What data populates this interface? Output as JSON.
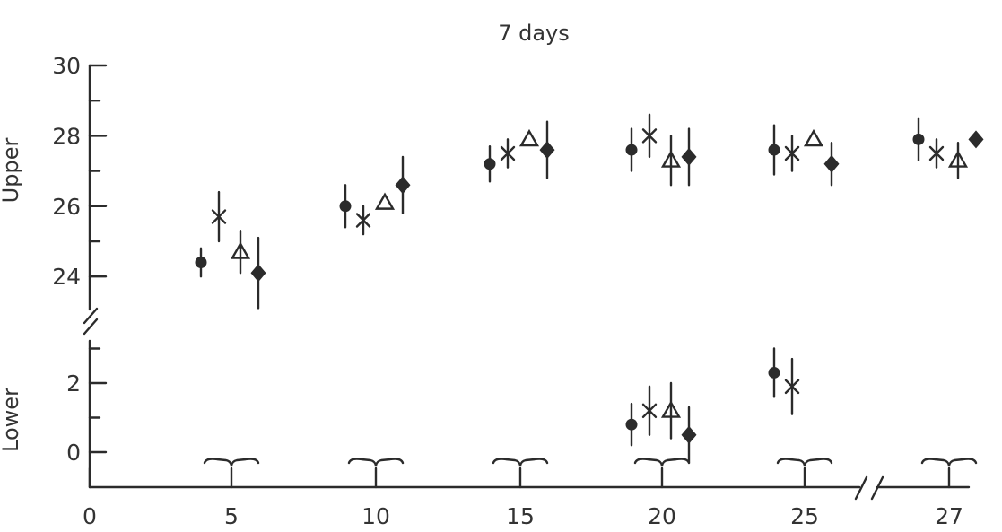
{
  "chart_data": {
    "type": "scatter",
    "title": "7 days",
    "panels": [
      {
        "ylabel": "Upper",
        "yticks": [
          24,
          26,
          28,
          30
        ],
        "ylim": [
          23,
          30
        ]
      },
      {
        "ylabel": "Lower",
        "yticks": [
          0,
          2
        ],
        "ylim": [
          0,
          3
        ]
      }
    ],
    "x_ticks": [
      "0",
      "5",
      "10",
      "15",
      "20",
      "25",
      "27"
    ],
    "markers": {
      "s1": "filled-circle",
      "s2": "asterisk",
      "s3": "open-triangle",
      "s4": "filled-diamond"
    },
    "groups": [
      {
        "x": "5",
        "panel": "Upper",
        "s1": 24.4,
        "s1_err": 0.4,
        "s2": 25.7,
        "s2_err": 0.7,
        "s3": 24.7,
        "s3_err": 0.6,
        "s4": 24.1,
        "s4_err": 1.0
      },
      {
        "x": "10",
        "panel": "Upper",
        "s1": 26.0,
        "s1_err": 0.6,
        "s2": 25.6,
        "s2_err": 0.4,
        "s3": 26.1,
        "s3_err": 0.0,
        "s4": 26.6,
        "s4_err": 0.8
      },
      {
        "x": "15",
        "panel": "Upper",
        "s1": 27.2,
        "s1_err": 0.5,
        "s2": 27.5,
        "s2_err": 0.4,
        "s3": 27.9,
        "s3_err": 0.0,
        "s4": 27.6,
        "s4_err": 0.8
      },
      {
        "x": "20",
        "panel": "Upper",
        "s1": 27.6,
        "s1_err": 0.6,
        "s2": 28.0,
        "s2_err": 0.6,
        "s3": 27.3,
        "s3_err": 0.7,
        "s4": 27.4,
        "s4_err": 0.8
      },
      {
        "x": "25",
        "panel": "Upper",
        "s1": 27.6,
        "s1_err": 0.7,
        "s2": 27.5,
        "s2_err": 0.5,
        "s3": 27.9,
        "s3_err": 0.0,
        "s4": 27.2,
        "s4_err": 0.6
      },
      {
        "x": "27",
        "panel": "Upper",
        "s1": 27.9,
        "s1_err": 0.6,
        "s2": 27.5,
        "s2_err": 0.4,
        "s3": 27.3,
        "s3_err": 0.5,
        "s4": 27.9,
        "s4_err": 0.0
      },
      {
        "x": "20",
        "panel": "Lower",
        "s1": 0.8,
        "s1_err": 0.6,
        "s2": 1.2,
        "s2_err": 0.7,
        "s3": 1.2,
        "s3_err": 0.8,
        "s4": 0.5,
        "s4_err": 0.8
      },
      {
        "x": "25",
        "panel": "Lower",
        "s1": 2.3,
        "s1_err": 0.7,
        "s2": 1.9,
        "s2_err": 0.8
      }
    ]
  }
}
